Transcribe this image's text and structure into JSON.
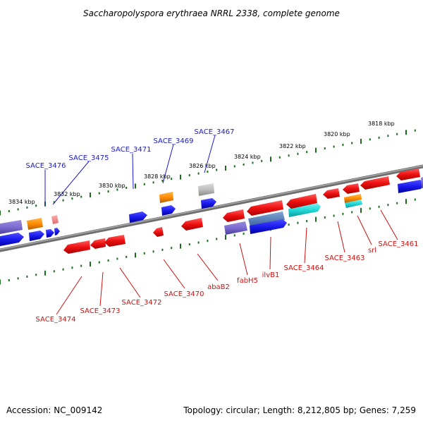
{
  "title": "Saccharopolyspora erythraea NRRL 2338, complete genome",
  "footer": {
    "accession": "Accession: NC_009142",
    "topology": "Topology: circular; Length: 8,212,805 bp; Genes: 7,259"
  },
  "kbp_labels": [
    "3834 kbp",
    "3832 kbp",
    "3830 kbp",
    "3828 kbp",
    "3826 kbp",
    "3824 kbp",
    "3822 kbp",
    "3820 kbp",
    "3818 kbp"
  ],
  "top_genes": [
    "SACE_3476",
    "SACE_3475",
    "SACE_3471",
    "SACE_3469",
    "SACE_3467"
  ],
  "bottom_genes": [
    "SACE_3474",
    "SACE_3473",
    "SACE_3472",
    "SACE_3470",
    "abaB2",
    "fabH5",
    "ilvB1",
    "SACE_3464",
    "SACE_3463",
    "srl",
    "SACE_3461"
  ],
  "colors": {
    "forward_gene": "#1a1aee",
    "reverse_gene": "#ee1111",
    "rna": "#ff8c00",
    "pseudo": "#aaaaaa",
    "tick": "#1a6e1a",
    "backbone": "#7a7a7a"
  }
}
